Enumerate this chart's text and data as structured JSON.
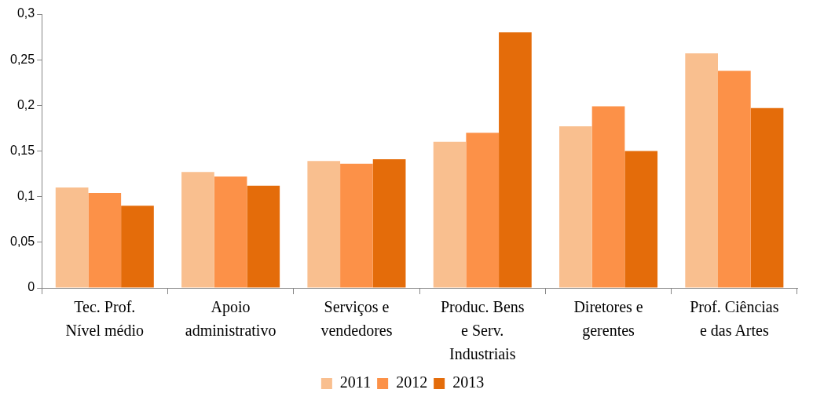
{
  "chart_data": {
    "type": "bar",
    "categories": [
      "Tec. Prof. Nível médio",
      "Apoio administrativo",
      "Serviços e vendedores",
      "Produc. Bens e Serv. Industriais",
      "Diretores e gerentes",
      "Prof. Ciências e das Artes"
    ],
    "series": [
      {
        "name": "2011",
        "color": "#f9bf8f",
        "values": [
          0.11,
          0.127,
          0.139,
          0.16,
          0.177,
          0.257
        ]
      },
      {
        "name": "2012",
        "color": "#fc9148",
        "values": [
          0.104,
          0.122,
          0.136,
          0.17,
          0.199,
          0.238
        ]
      },
      {
        "name": "2013",
        "color": "#e46c0a",
        "values": [
          0.09,
          0.112,
          0.141,
          0.28,
          0.15,
          0.197
        ]
      }
    ],
    "ylim": [
      0,
      0.3
    ],
    "yticks": [
      {
        "value": 0,
        "label": "0"
      },
      {
        "value": 0.05,
        "label": "0,05"
      },
      {
        "value": 0.1,
        "label": "0,1"
      },
      {
        "value": 0.15,
        "label": "0,15"
      },
      {
        "value": 0.2,
        "label": "0,2"
      },
      {
        "value": 0.25,
        "label": "0,25"
      },
      {
        "value": 0.3,
        "label": "0,3"
      }
    ],
    "grid": false,
    "legend": "bottom"
  }
}
